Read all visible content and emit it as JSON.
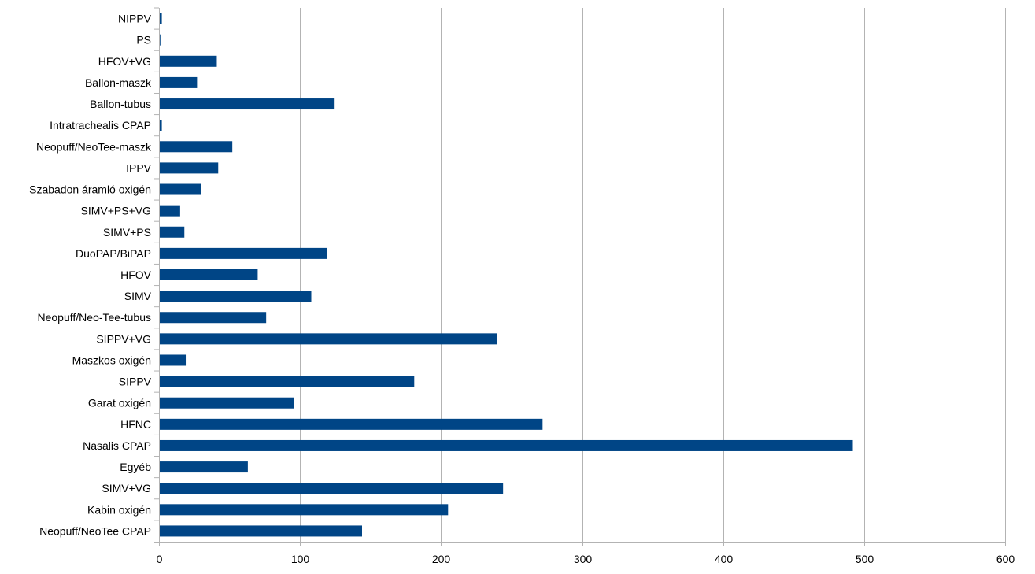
{
  "chart_data": {
    "type": "bar",
    "orientation": "horizontal",
    "title": "",
    "xlabel": "",
    "ylabel": "",
    "xlim": [
      0,
      600
    ],
    "x_ticks": [
      0,
      100,
      200,
      300,
      400,
      500,
      600
    ],
    "grid": "vertical",
    "legend": "none",
    "bar_color": "#004586",
    "categories": [
      "NIPPV",
      "PS",
      "HFOV+VG",
      "Ballon-maszk",
      "Ballon-tubus",
      "Intratrachealis CPAP",
      "Neopuff/NeoTee-maszk",
      "IPPV",
      "Szabadon áramló oxigén",
      "SIMV+PS+VG",
      "SIMV+PS",
      "DuoPAP/BiPAP",
      "HFOV",
      "SIMV",
      "Neopuff/Neo-Tee-tubus",
      "SIPPV+VG",
      "Maszkos oxigén",
      "SIPPV",
      "Garat oxigén",
      "HFNC",
      "Nasalis CPAP",
      "Egyéb",
      "SIMV+VG",
      "Kabin oxigén",
      "Neopuff/NeoTee CPAP"
    ],
    "values": [
      2,
      1,
      41,
      27,
      124,
      2,
      52,
      42,
      30,
      15,
      18,
      119,
      70,
      108,
      76,
      240,
      19,
      181,
      96,
      272,
      492,
      63,
      244,
      205,
      144
    ]
  }
}
